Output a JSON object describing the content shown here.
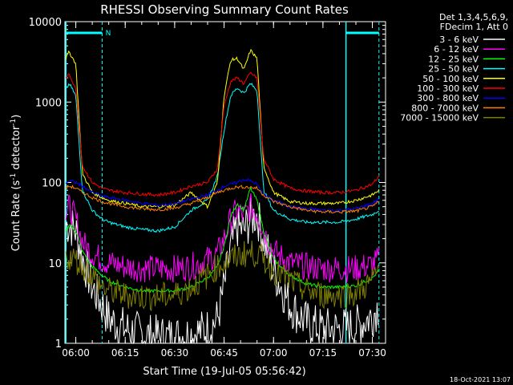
{
  "chart_data": {
    "type": "line",
    "title": "RHESSI Observing Summary Count Rates",
    "xlabel": "Start Time (19-Jul-05 05:56:42)",
    "ylabel_prefix": "Count Rate (s",
    "ylabel_exp1": "-1",
    "ylabel_mid": " detector",
    "ylabel_exp2": "-1",
    "ylabel_suffix": ")",
    "yscale": "log",
    "ylim": [
      1,
      10000
    ],
    "xlim": [
      "05:56:42",
      "07:34:00"
    ],
    "x_ticks": [
      "06:00",
      "06:15",
      "06:30",
      "06:45",
      "07:00",
      "07:15",
      "07:30"
    ],
    "y_ticks": [
      "1",
      "10",
      "100",
      "1000",
      "10000"
    ],
    "legend_header": [
      "Det 1,3,4,5,6,9,",
      "FDecim 1, Att 0"
    ],
    "legend_position": "right",
    "footer_date": "18-Oct-2021 13:07",
    "night_marker": "N",
    "time_samples": [
      "05:57",
      "05:58",
      "06:00",
      "06:02",
      "06:05",
      "06:08",
      "06:10",
      "06:15",
      "06:20",
      "06:25",
      "06:30",
      "06:35",
      "06:40",
      "06:43",
      "06:45",
      "06:47",
      "06:49",
      "06:51",
      "06:53",
      "06:55",
      "06:57",
      "07:00",
      "07:05",
      "07:10",
      "07:15",
      "07:20",
      "07:25",
      "07:30",
      "07:32"
    ],
    "series": [
      {
        "name": "3 - 6 keV",
        "color": "#ffffff",
        "values": [
          30,
          30,
          25,
          12,
          5,
          3,
          2,
          1.5,
          1.3,
          1.2,
          1.2,
          1.3,
          1.5,
          2,
          5,
          15,
          28,
          25,
          35,
          40,
          20,
          8,
          3,
          1.8,
          1.5,
          1.5,
          1.6,
          2.2,
          3
        ]
      },
      {
        "name": "6 - 12 keV",
        "color": "#ff00ff",
        "values": [
          40,
          50,
          35,
          18,
          13,
          11,
          10,
          9,
          8.5,
          8.5,
          8.5,
          9,
          11,
          13,
          20,
          35,
          45,
          38,
          50,
          42,
          25,
          14,
          10,
          9,
          8.5,
          8.5,
          8.5,
          9.5,
          11
        ]
      },
      {
        "name": "12 - 25 keV",
        "color": "#00ff00",
        "values": [
          25,
          30,
          25,
          14,
          9,
          7,
          6,
          5,
          4.5,
          4.5,
          4.5,
          5,
          6.5,
          9,
          16,
          38,
          55,
          45,
          85,
          60,
          25,
          11,
          7,
          5.5,
          5,
          5,
          5.2,
          6.5,
          8
        ]
      },
      {
        "name": "25 - 50 keV",
        "color": "#00ffff",
        "values": [
          1400,
          1700,
          1200,
          80,
          45,
          35,
          32,
          28,
          26,
          25,
          28,
          45,
          60,
          120,
          450,
          1200,
          1500,
          1300,
          1700,
          1400,
          80,
          45,
          35,
          32,
          32,
          32,
          35,
          40,
          45
        ]
      },
      {
        "name": "50 - 100 keV",
        "color": "#ffff00",
        "values": [
          3500,
          4200,
          3000,
          130,
          75,
          65,
          60,
          55,
          50,
          50,
          52,
          75,
          50,
          100,
          1200,
          3300,
          3500,
          2500,
          4400,
          3500,
          160,
          75,
          58,
          55,
          55,
          55,
          60,
          70,
          80
        ]
      },
      {
        "name": "100 - 300 keV",
        "color": "#ff0000",
        "values": [
          2000,
          2200,
          1500,
          160,
          100,
          85,
          80,
          75,
          72,
          70,
          75,
          90,
          100,
          150,
          900,
          1800,
          2000,
          1700,
          2300,
          2000,
          200,
          110,
          85,
          78,
          75,
          75,
          80,
          95,
          120
        ]
      },
      {
        "name": "300 - 800 keV",
        "color": "#0000ff",
        "values": [
          100,
          105,
          100,
          90,
          75,
          68,
          65,
          60,
          55,
          52,
          54,
          62,
          70,
          80,
          90,
          95,
          100,
          110,
          105,
          95,
          70,
          60,
          50,
          47,
          45,
          45,
          47,
          55,
          62
        ]
      },
      {
        "name": "800 - 7000 keV",
        "color": "#ff8000",
        "values": [
          85,
          90,
          85,
          75,
          65,
          58,
          55,
          50,
          47,
          46,
          48,
          55,
          65,
          75,
          80,
          85,
          88,
          88,
          87,
          85,
          70,
          58,
          50,
          45,
          43,
          43,
          44,
          50,
          58
        ]
      },
      {
        "name": "7000 - 15000 keV",
        "color": "#808000",
        "values": [
          11,
          12,
          11,
          9,
          7,
          5,
          4.5,
          4,
          3.8,
          3.8,
          4,
          5,
          7,
          9,
          10,
          11,
          12,
          13,
          13,
          13,
          11,
          8,
          6,
          4.5,
          4,
          4,
          4.2,
          6,
          8.5
        ]
      }
    ],
    "saa_intervals": [
      [
        "05:57",
        "06:08"
      ],
      [
        "07:22",
        "07:32"
      ]
    ]
  }
}
